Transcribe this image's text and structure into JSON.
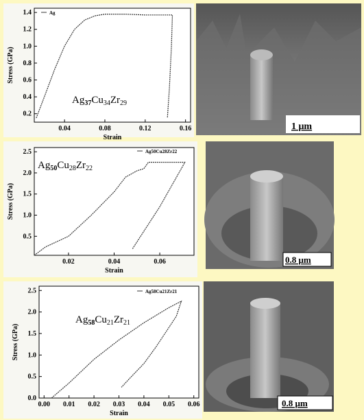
{
  "chart_data": [
    {
      "type": "line",
      "xlabel": "Strain",
      "ylabel": "Stress (GPa)",
      "annotation_parts": [
        "Ag",
        "37",
        "Cu",
        "34",
        "Zr",
        "29"
      ],
      "xlim": [
        0.01,
        0.165
      ],
      "ylim": [
        0.1,
        1.45
      ],
      "xticks": [
        0.04,
        0.08,
        0.12,
        0.16
      ],
      "yticks": [
        0.2,
        0.4,
        0.6,
        0.8,
        {
          "value": 1.0,
          "label": "1.0"
        },
        1.2,
        1.4
      ],
      "series": [
        {
          "name": "Ag",
          "color": "#333333",
          "x": [
            0.012,
            0.02,
            0.03,
            0.04,
            0.05,
            0.06,
            0.07,
            0.08,
            0.1,
            0.12,
            0.147,
            0.146,
            0.144,
            0.142
          ],
          "values": [
            0.15,
            0.4,
            0.72,
            1.0,
            1.2,
            1.31,
            1.36,
            1.38,
            1.38,
            1.37,
            1.37,
            1.0,
            0.5,
            0.15
          ]
        }
      ]
    },
    {
      "type": "line",
      "xlabel": "Strain",
      "ylabel": "Stress (GPa)",
      "annotation_parts": [
        "Ag",
        "50",
        "Cu",
        "28",
        "Zr",
        "22"
      ],
      "xlim": [
        0.005,
        0.075
      ],
      "ylim": [
        0.05,
        2.6
      ],
      "xticks": [
        0.02,
        0.04,
        0.06
      ],
      "yticks": [
        0.5,
        {
          "value": 1.0,
          "label": "1.0"
        },
        1.5,
        {
          "value": 2.0,
          "label": "2.0"
        },
        2.5
      ],
      "series": [
        {
          "name": "Ag50Cu28Zr22",
          "color": "#333333",
          "x": [
            0.005,
            0.01,
            0.02,
            0.03,
            0.04,
            0.045,
            0.05,
            0.053,
            0.055,
            0.07,
            0.071,
            0.06,
            0.048
          ],
          "values": [
            0.05,
            0.25,
            0.5,
            1.0,
            1.55,
            1.9,
            2.05,
            2.1,
            2.25,
            2.25,
            2.25,
            1.2,
            0.2
          ]
        }
      ]
    },
    {
      "type": "line",
      "xlabel": "Strain",
      "ylabel": "Stress (GPa)",
      "annotation_parts": [
        "Ag",
        "58",
        "Cu",
        "21",
        "Zr",
        "21"
      ],
      "xlim": [
        -0.002,
        0.062
      ],
      "ylim": [
        0,
        2.6
      ],
      "xticks": [
        {
          "value": 0,
          "label": "0.00"
        },
        0.01,
        0.02,
        0.03,
        0.04,
        0.05,
        0.06
      ],
      "yticks": [
        {
          "value": 0,
          "label": "0.0"
        },
        0.5,
        {
          "value": 1.0,
          "label": "1.0"
        },
        1.5,
        {
          "value": 2.0,
          "label": "2.0"
        },
        2.5
      ],
      "series": [
        {
          "name": "Ag58Cu21Zr21",
          "color": "#333333",
          "x": [
            0.003,
            0.01,
            0.02,
            0.03,
            0.04,
            0.05,
            0.055,
            0.053,
            0.045,
            0.04,
            0.035,
            0.031
          ],
          "values": [
            0,
            0.35,
            0.9,
            1.35,
            1.75,
            2.1,
            2.25,
            1.9,
            1.2,
            0.8,
            0.5,
            0.25
          ]
        }
      ]
    }
  ],
  "images": [
    {
      "scale": "1 μm"
    },
    {
      "scale": "0.8 μm"
    },
    {
      "scale": "0.8 μm"
    }
  ]
}
